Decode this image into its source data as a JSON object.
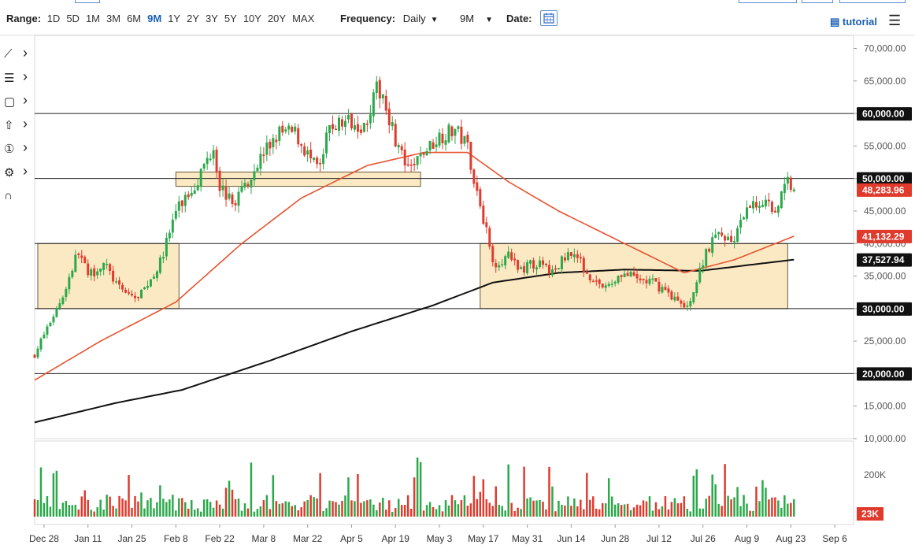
{
  "toolbar": {
    "range_label": "Range:",
    "ranges": [
      "1D",
      "5D",
      "1M",
      "3M",
      "6M",
      "9M",
      "1Y",
      "2Y",
      "3Y",
      "5Y",
      "10Y",
      "20Y",
      "MAX"
    ],
    "active_range": "9M",
    "frequency_label": "Frequency:",
    "frequency_value": "Daily",
    "period_value": "9M",
    "date_label": "Date:",
    "tutorial_label": "tutorial"
  },
  "tools": [
    {
      "icon": "trendline-icon",
      "glyph": "⟋"
    },
    {
      "icon": "fibonacci-icon",
      "glyph": "☰"
    },
    {
      "icon": "rectangle-icon",
      "glyph": "▢"
    },
    {
      "icon": "arrow-up-icon",
      "glyph": "⇧"
    },
    {
      "icon": "counter-icon",
      "glyph": "①"
    },
    {
      "icon": "settings-sliders-icon",
      "glyph": "⚙"
    },
    {
      "icon": "magnet-icon",
      "glyph": "∩"
    }
  ],
  "chart_data": {
    "type": "candlestick",
    "ylim": [
      10000,
      72000
    ],
    "y_ticks": [
      10000,
      15000,
      20000,
      25000,
      30000,
      35000,
      40000,
      45000,
      50000,
      55000,
      60000,
      65000,
      70000
    ],
    "y_tick_labels": [
      "10,000.00",
      "15,000.00",
      "20,000.00",
      "25,000.00",
      "30,000.00",
      "35,000.00",
      "40,000.00",
      "45,000.00",
      "50,000.00",
      "55,000.00",
      "60,000.00",
      "65,000.00",
      "70,000.00"
    ],
    "x_tick_labels": [
      "Dec 28",
      "Jan 11",
      "Jan 25",
      "Feb 8",
      "Feb 22",
      "Mar 8",
      "Mar 22",
      "Apr 5",
      "Apr 19",
      "May 3",
      "May 17",
      "May 31",
      "Jun 14",
      "Jun 28",
      "Jul 12",
      "Jul 26",
      "Aug 9",
      "Aug 23",
      "Sep 6"
    ],
    "horizontal_levels": [
      {
        "value": 60000,
        "label": "60,000.00"
      },
      {
        "value": 50000,
        "label": "50,000.00"
      },
      {
        "value": 40000
      },
      {
        "value": 30000,
        "label": "30,000.00"
      },
      {
        "value": 20000,
        "label": "20,000.00"
      }
    ],
    "zones": [
      {
        "from": "Dec 26",
        "to": "Feb 9",
        "low": 30000,
        "high": 40000
      },
      {
        "from": "Feb 8",
        "to": "Apr 27",
        "low": 48800,
        "high": 51000
      },
      {
        "from": "May 16",
        "to": "Aug 22",
        "low": 30000,
        "high": 40000
      }
    ],
    "price_labels": [
      {
        "value": 48283.96,
        "label": "48,283.96",
        "color": "#e03a2c"
      },
      {
        "value": 41132.29,
        "label": "41,132.29",
        "color": "#e03a2c"
      },
      {
        "value": 37527.94,
        "label": "37,527.94",
        "color": "#111111"
      }
    ],
    "anchors": [
      [
        "Dec 25",
        23000
      ],
      [
        "Jan 3",
        32000
      ],
      [
        "Jan 8",
        39000
      ],
      [
        "Jan 11",
        35000
      ],
      [
        "Jan 16",
        37000
      ],
      [
        "Jan 21",
        33000
      ],
      [
        "Jan 27",
        31500
      ],
      [
        "Feb 3",
        37000
      ],
      [
        "Feb 8",
        45000
      ],
      [
        "Feb 14",
        49000
      ],
      [
        "Feb 20",
        55000
      ],
      [
        "Feb 22",
        49000
      ],
      [
        "Feb 26",
        46000
      ],
      [
        "Mar 2",
        49000
      ],
      [
        "Mar 8",
        54000
      ],
      [
        "Mar 13",
        57000
      ],
      [
        "Mar 18",
        57000
      ],
      [
        "Mar 24",
        52000
      ],
      [
        "Mar 26",
        51500
      ],
      [
        "Mar 29",
        58000
      ],
      [
        "Apr 5",
        59000
      ],
      [
        "Apr 9",
        58000
      ],
      [
        "Apr 13",
        63500
      ],
      [
        "Apr 15",
        63000
      ],
      [
        "Apr 19",
        56000
      ],
      [
        "Apr 23",
        51000
      ],
      [
        "Apr 28",
        54000
      ],
      [
        "May 3",
        56500
      ],
      [
        "May 8",
        57500
      ],
      [
        "May 12",
        55000
      ],
      [
        "May 14",
        50000
      ],
      [
        "May 17",
        44000
      ],
      [
        "May 20",
        37000
      ],
      [
        "May 25",
        38000
      ],
      [
        "May 28",
        36000
      ],
      [
        "Jun 3",
        37000
      ],
      [
        "Jun 8",
        35500
      ],
      [
        "Jun 14",
        39000
      ],
      [
        "Jun 20",
        35000
      ],
      [
        "Jun 25",
        33000
      ],
      [
        "Jun 30",
        35500
      ],
      [
        "Jul 5",
        34500
      ],
      [
        "Jul 10",
        34000
      ],
      [
        "Jul 15",
        32500
      ],
      [
        "Jul 20",
        30000
      ],
      [
        "Jul 23",
        32500
      ],
      [
        "Jul 27",
        39000
      ],
      [
        "Jul 31",
        41500
      ],
      [
        "Aug 5",
        40500
      ],
      [
        "Aug 10",
        46000
      ],
      [
        "Aug 15",
        46500
      ],
      [
        "Aug 18",
        45000
      ],
      [
        "Aug 22",
        49800
      ],
      [
        "Aug 24",
        48283.96
      ]
    ],
    "ma_50_anchors": [
      [
        "Dec 25",
        19000
      ],
      [
        "Jan 15",
        25000
      ],
      [
        "Feb 8",
        31000
      ],
      [
        "Mar 1",
        40000
      ],
      [
        "Mar 20",
        47000
      ],
      [
        "Apr 10",
        52000
      ],
      [
        "Apr 28",
        54000
      ],
      [
        "May 12",
        54000
      ],
      [
        "May 25",
        49500
      ],
      [
        "Jun 10",
        45000
      ],
      [
        "Jul 1",
        40000
      ],
      [
        "Jul 20",
        35500
      ],
      [
        "Aug 5",
        37500
      ],
      [
        "Aug 24",
        41132.29
      ]
    ],
    "ma_200_anchors": [
      [
        "Dec 25",
        12500
      ],
      [
        "Jan 20",
        15500
      ],
      [
        "Feb 10",
        17500
      ],
      [
        "Mar 10",
        22000
      ],
      [
        "Apr 5",
        26500
      ],
      [
        "May 1",
        30500
      ],
      [
        "May 20",
        34000
      ],
      [
        "Jun 10",
        35500
      ],
      [
        "Jul 1",
        36000
      ],
      [
        "Jul 25",
        35800
      ],
      [
        "Aug 24",
        37527.94
      ]
    ],
    "volume": {
      "tick_labels": [
        "200K"
      ],
      "current_label": "23K"
    },
    "series": [
      {
        "name": "price"
      },
      {
        "name": "50-day MA",
        "color": "#e8532f"
      },
      {
        "name": "200-day MA",
        "color": "#111111"
      }
    ],
    "colors": {
      "up": "#2aa84a",
      "down": "#e03a2c",
      "zone_fill": "#fbe9c4",
      "zone_stroke": "#6b5a3a"
    }
  }
}
